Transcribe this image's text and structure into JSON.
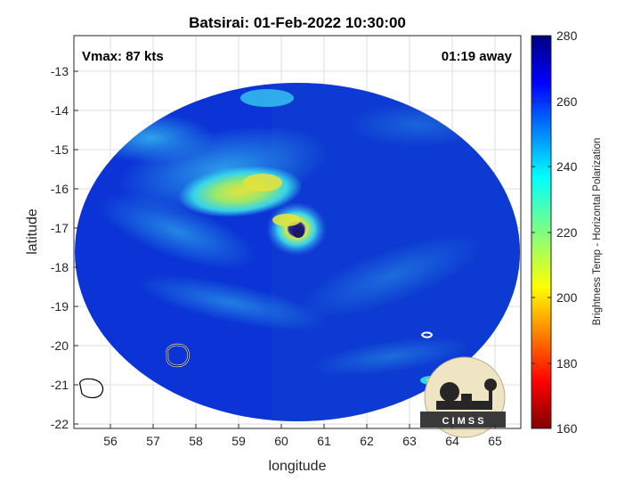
{
  "title": "Batsirai: 01-Feb-2022 10:30:00",
  "vmax_label": "Vmax: 87 kts",
  "time_away_label": "01:19 away",
  "xlabel": "longitude",
  "ylabel": "latitude",
  "x_ticks": [
    "56",
    "57",
    "58",
    "59",
    "60",
    "61",
    "62",
    "63",
    "64",
    "65"
  ],
  "y_ticks": [
    "-13",
    "-14",
    "-15",
    "-16",
    "-17",
    "-18",
    "-19",
    "-20",
    "-21",
    "-22"
  ],
  "colorbar": {
    "label": "Brightness Temp - Horizontal Polarization",
    "ticks": [
      "280",
      "260",
      "240",
      "220",
      "200",
      "180",
      "160"
    ],
    "range": [
      160,
      280
    ],
    "colormap": "jet"
  },
  "map": {
    "lon_range": [
      55.2,
      65.6
    ],
    "lat_range": [
      -22.1,
      -12.2
    ],
    "eye_center": [
      60.4,
      -17.1
    ],
    "swath_center": [
      60.0,
      -17.6
    ],
    "islands": [
      "Mauritius",
      "Reunion",
      "Rodrigues"
    ]
  },
  "logo": {
    "text": "C I M S S"
  },
  "colors": {
    "background_deep": "#0a2fd8",
    "cold_band": "#2fd0ea",
    "warm_band": "#e9e33a",
    "eye": "#1a1a6a",
    "frame": "#262626"
  }
}
